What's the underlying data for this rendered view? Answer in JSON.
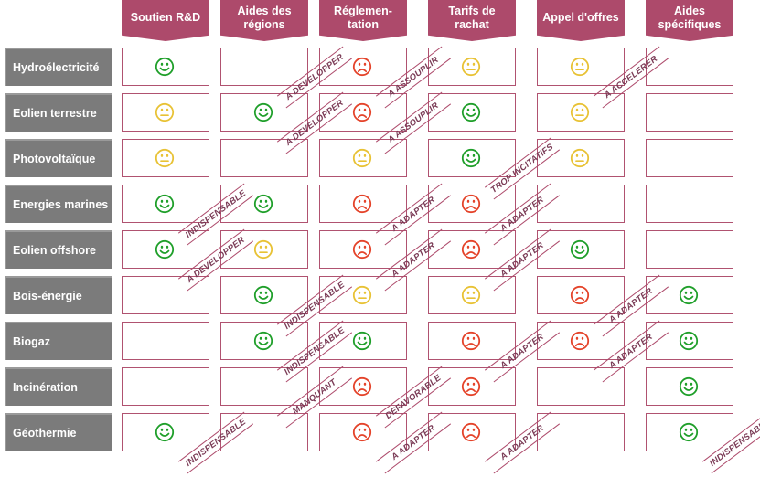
{
  "colors": {
    "header": "#ad4a6b",
    "row_label": "#7b7b7b",
    "cell_border": "#b05270",
    "stamp": "#ad4a6b",
    "status": {
      "good": "#1f9f2a",
      "neutral": "#e8c235",
      "bad": "#e4432a"
    }
  },
  "columns": [
    "Soutien R&D",
    "Aides des\nrégions",
    "Réglemen-\ntation",
    "Tarifs de\nrachat",
    "Appel d'offres",
    "Aides\nspécifiques"
  ],
  "rows": [
    {
      "label": "Hydroélectricité",
      "cells": [
        {
          "status": "good",
          "stamp": ""
        },
        {
          "status": "",
          "stamp": "A DEVELOPPER"
        },
        {
          "status": "bad",
          "stamp": "A ASSOUPLIR"
        },
        {
          "status": "neutral",
          "stamp": ""
        },
        {
          "status": "neutral",
          "stamp": "A ACCELERER"
        },
        {
          "status": "",
          "stamp": ""
        }
      ]
    },
    {
      "label": "Eolien terrestre",
      "cells": [
        {
          "status": "neutral",
          "stamp": ""
        },
        {
          "status": "good",
          "stamp": "A DEVELOPPER"
        },
        {
          "status": "bad",
          "stamp": "A ASSOUPLIR"
        },
        {
          "status": "good",
          "stamp": ""
        },
        {
          "status": "neutral",
          "stamp": ""
        },
        {
          "status": "",
          "stamp": ""
        }
      ]
    },
    {
      "label": "Photovoltaïque",
      "cells": [
        {
          "status": "neutral",
          "stamp": ""
        },
        {
          "status": "",
          "stamp": ""
        },
        {
          "status": "neutral",
          "stamp": ""
        },
        {
          "status": "good",
          "stamp": "TROP INCITATIFS"
        },
        {
          "status": "neutral",
          "stamp": ""
        },
        {
          "status": "",
          "stamp": ""
        }
      ]
    },
    {
      "label": "Energies marines",
      "cells": [
        {
          "status": "good",
          "stamp": "INDISPENSABLE"
        },
        {
          "status": "good",
          "stamp": ""
        },
        {
          "status": "bad",
          "stamp": "A ADAPTER"
        },
        {
          "status": "bad",
          "stamp": "A ADAPTER"
        },
        {
          "status": "",
          "stamp": ""
        },
        {
          "status": "",
          "stamp": ""
        }
      ]
    },
    {
      "label": "Eolien offshore",
      "cells": [
        {
          "status": "good",
          "stamp": "A DEVELOPPER"
        },
        {
          "status": "neutral",
          "stamp": ""
        },
        {
          "status": "bad",
          "stamp": "A ADAPTER"
        },
        {
          "status": "bad",
          "stamp": "A ADAPTER"
        },
        {
          "status": "good",
          "stamp": ""
        },
        {
          "status": "",
          "stamp": ""
        }
      ]
    },
    {
      "label": "Bois-énergie",
      "cells": [
        {
          "status": "",
          "stamp": ""
        },
        {
          "status": "good",
          "stamp": "INDISPENSABLE"
        },
        {
          "status": "neutral",
          "stamp": ""
        },
        {
          "status": "neutral",
          "stamp": ""
        },
        {
          "status": "bad",
          "stamp": "A ADAPTER"
        },
        {
          "status": "good",
          "stamp": ""
        }
      ]
    },
    {
      "label": "Biogaz",
      "cells": [
        {
          "status": "",
          "stamp": ""
        },
        {
          "status": "good",
          "stamp": "INDISPENSABLE"
        },
        {
          "status": "good",
          "stamp": ""
        },
        {
          "status": "bad",
          "stamp": "A ADAPTER"
        },
        {
          "status": "bad",
          "stamp": "A ADAPTER"
        },
        {
          "status": "good",
          "stamp": ""
        }
      ]
    },
    {
      "label": "Incinération",
      "cells": [
        {
          "status": "",
          "stamp": ""
        },
        {
          "status": "",
          "stamp": "MANQUANT"
        },
        {
          "status": "bad",
          "stamp": "DEFAVORABLE"
        },
        {
          "status": "bad",
          "stamp": ""
        },
        {
          "status": "",
          "stamp": ""
        },
        {
          "status": "good",
          "stamp": ""
        }
      ]
    },
    {
      "label": "Géothermie",
      "cells": [
        {
          "status": "good",
          "stamp": "INDISPENSABLE"
        },
        {
          "status": "",
          "stamp": ""
        },
        {
          "status": "bad",
          "stamp": "A ADAPTER"
        },
        {
          "status": "bad",
          "stamp": "A ADAPTER"
        },
        {
          "status": "",
          "stamp": ""
        },
        {
          "status": "good",
          "stamp": "INDISPENSABLE"
        }
      ]
    }
  ]
}
